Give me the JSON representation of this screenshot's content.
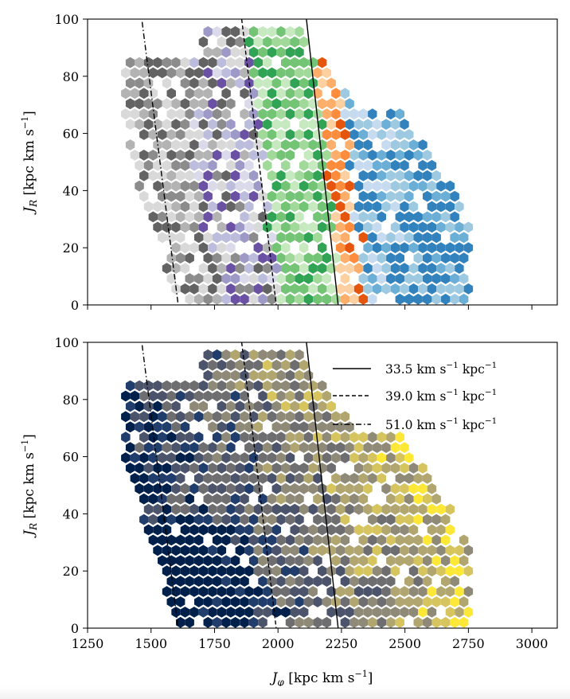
{
  "chart_data": [
    {
      "type": "heatmap",
      "panel": "top",
      "ylabel": "J_R [kpc km s^-1]",
      "xlim": [
        1250,
        3100
      ],
      "ylim": [
        0,
        100
      ],
      "xticks": [
        1250,
        1500,
        1750,
        2000,
        2250,
        2500,
        2750,
        3000
      ],
      "yticks": [
        0,
        20,
        40,
        60,
        80,
        100
      ],
      "show_x_ticklabels": false,
      "hexbin_colormaps": [
        "light-grey-to-dark-grey",
        "light-purple-to-dark-purple",
        "light-green-to-dark-green",
        "light-orange-to-dark-orange",
        "light-blue-to-dark-blue"
      ],
      "colors": {
        "grey": [
          "#d9d9d9",
          "#b3b3b3",
          "#8c8c8c",
          "#636363"
        ],
        "purple": [
          "#dadaeb",
          "#bcbddc",
          "#9e9ac8",
          "#6a51a3"
        ],
        "green": [
          "#c7e9c0",
          "#a1d99b",
          "#74c476",
          "#31a354"
        ],
        "orange": [
          "#fdd0a2",
          "#fdae6b",
          "#fd8d3c",
          "#e6550d"
        ],
        "blue": [
          "#c6dbef",
          "#9ecae1",
          "#6baed6",
          "#3182bd"
        ]
      },
      "lines": [
        {
          "name": "33.5 km s^-1 kpc^-1",
          "style": "solid",
          "x": [
            2112,
            2237
          ],
          "y": [
            100,
            0
          ]
        },
        {
          "name": "39.0 km s^-1 kpc^-1",
          "style": "dashed",
          "x": [
            1857,
            1993
          ],
          "y": [
            100,
            0
          ]
        },
        {
          "name": "51.0 km s^-1 kpc^-1",
          "style": "dashdot",
          "x": [
            1465,
            1607
          ],
          "y": [
            99,
            0
          ]
        }
      ]
    },
    {
      "type": "heatmap",
      "panel": "bottom",
      "xlabel": "J_φ [kpc km s^-1]",
      "ylabel": "J_R [kpc km s^-1]",
      "xlim": [
        1250,
        3100
      ],
      "ylim": [
        0,
        100
      ],
      "xticks": [
        1250,
        1500,
        1750,
        2000,
        2250,
        2500,
        2750,
        3000
      ],
      "yticks": [
        0,
        20,
        40,
        60,
        80,
        100
      ],
      "show_x_ticklabels": true,
      "hexbin_colormap": "cividis",
      "colors": {
        "cividis": [
          "#00204c",
          "#213d6b",
          "#4c546c",
          "#6e6e70",
          "#8f8a77",
          "#b2a670",
          "#d6c45f",
          "#fde737"
        ]
      },
      "lines": [
        {
          "name": "33.5 km s^-1 kpc^-1",
          "style": "solid",
          "x": [
            2112,
            2237
          ],
          "y": [
            100,
            0
          ]
        },
        {
          "name": "39.0 km s^-1 kpc^-1",
          "style": "dashed",
          "x": [
            1857,
            1993
          ],
          "y": [
            100,
            0
          ]
        },
        {
          "name": "51.0 km s^-1 kpc^-1",
          "style": "dashdot",
          "x": [
            1465,
            1607
          ],
          "y": [
            99,
            0
          ]
        }
      ],
      "legend_placement": "top-right",
      "legend": [
        "33.5 km s^-1 kpc^-1",
        "39.0 km s^-1 kpc^-1",
        "51.0 km s^-1 kpc^-1"
      ]
    }
  ],
  "labels": {
    "ylabel_main": "J",
    "ylabel_sub": "R",
    "ylabel_units_pre": " [kpc km s",
    "ylabel_units_exp": "−1",
    "ylabel_units_post": "]",
    "xlabel_main": "J",
    "xlabel_sub": "φ",
    "xlabel_units_pre": " [kpc km s",
    "xlabel_units_exp": "−1",
    "xlabel_units_post": "]",
    "legend_1_pre": "33.5 km s",
    "legend_2_pre": "39.0 km s",
    "legend_3_pre": "51.0 km s",
    "legend_mid": " kpc",
    "legend_exp": "−1",
    "legend_s_exp": "−1"
  }
}
